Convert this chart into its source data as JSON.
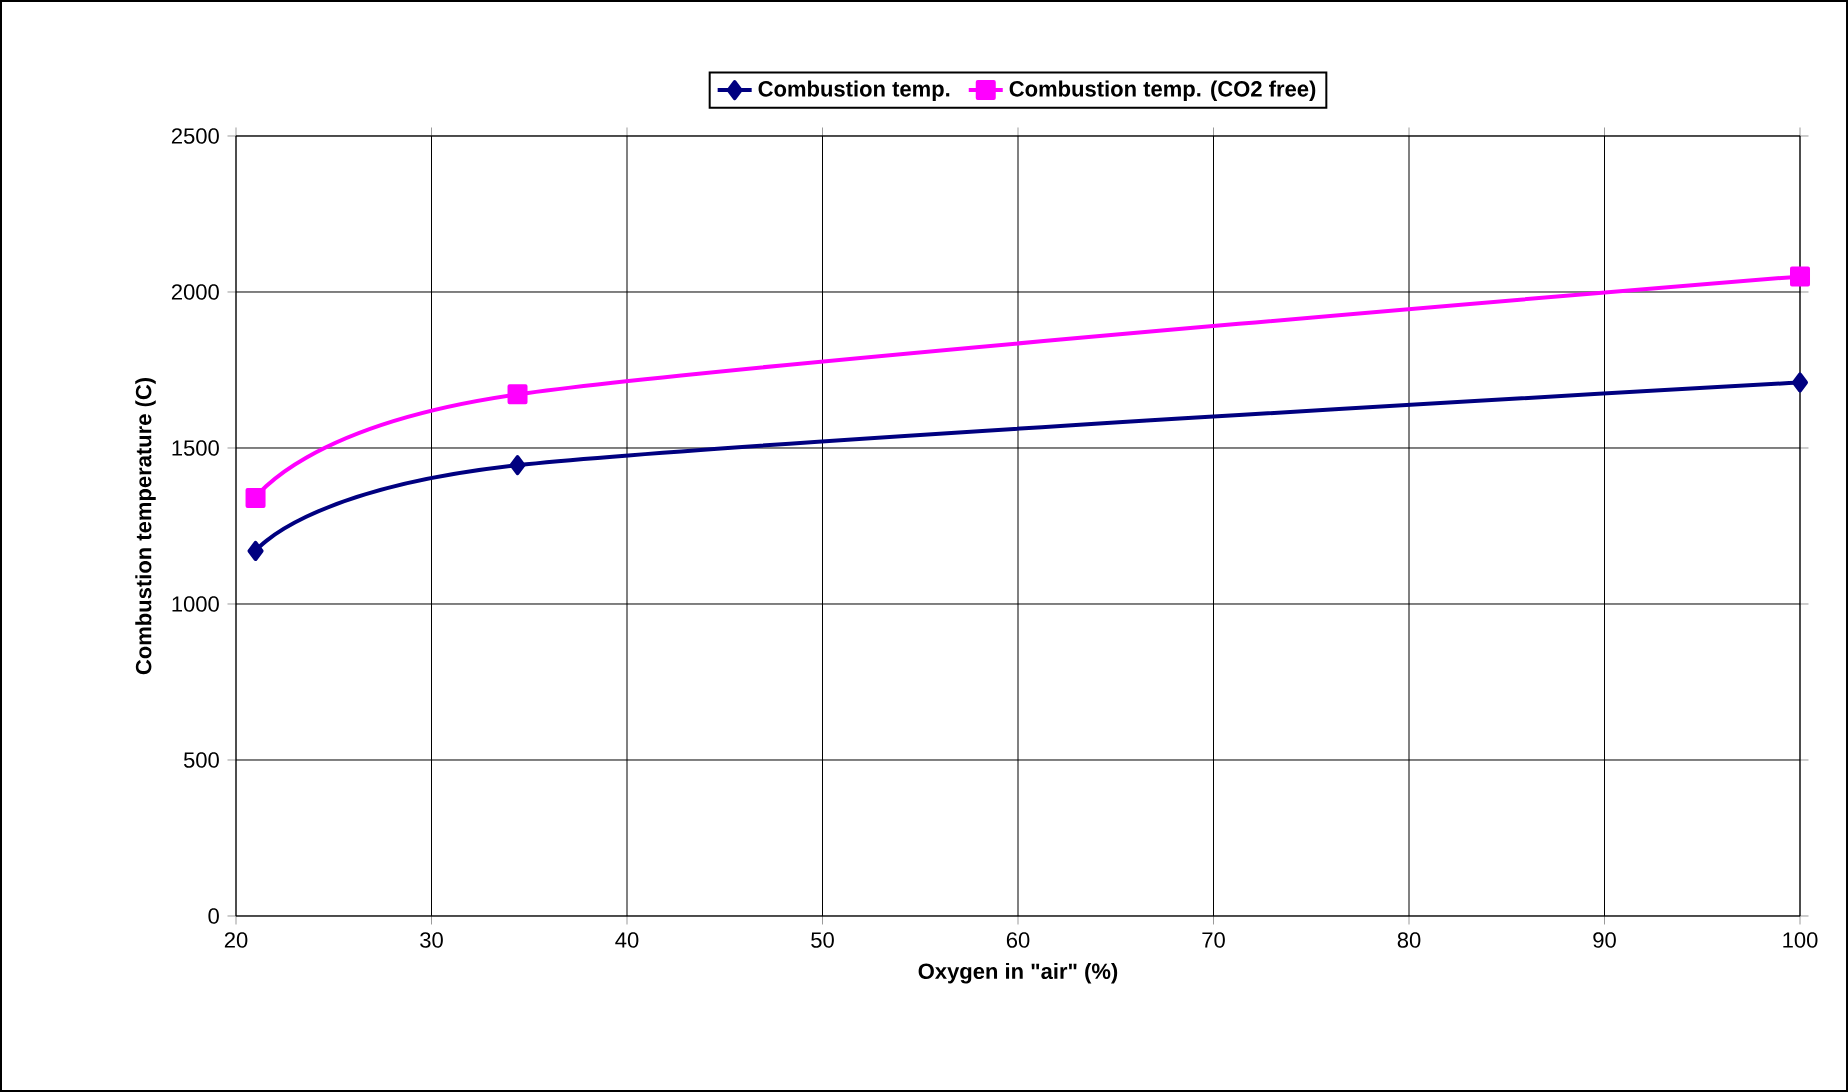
{
  "chart_data": {
    "type": "line",
    "xlabel": "Oxygen in \"air\" (%)",
    "ylabel": "Combustion temperature (C)",
    "x": [
      21,
      34.4,
      100
    ],
    "series": [
      {
        "name": "Combustion temp.",
        "color": "#000080",
        "values": [
          1170,
          1445,
          1710
        ],
        "marker": "diamond"
      },
      {
        "name": "Combustion temp. (CO2 free)",
        "color": "#ff00ff",
        "values": [
          1340,
          1672,
          2050
        ],
        "marker": "square"
      }
    ],
    "xlim": [
      20,
      100
    ],
    "xticks": [
      20,
      30,
      40,
      50,
      60,
      70,
      80,
      90,
      100
    ],
    "ylim": [
      0,
      2500
    ],
    "yticks": [
      0,
      500,
      1000,
      1500,
      2000,
      2500
    ],
    "grid": true,
    "legend": "top",
    "line_style": "solid"
  }
}
